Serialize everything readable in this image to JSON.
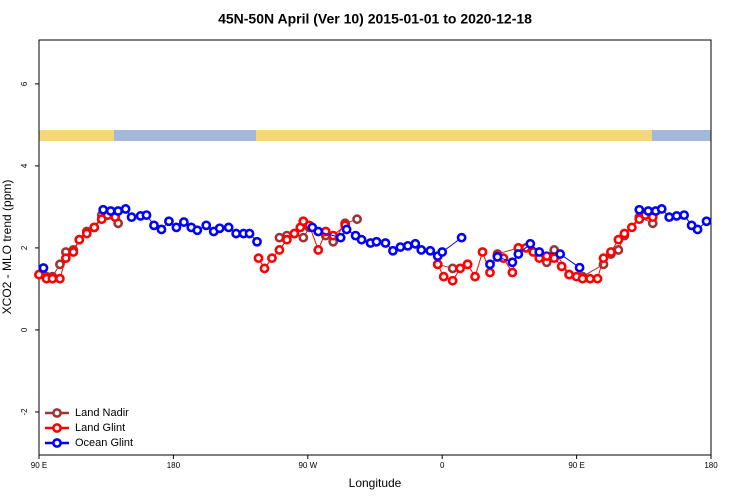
{
  "chart_data": {
    "type": "line",
    "title": "45N-50N April (Ver 10)   2015-01-01 to 2020-12-18",
    "xlabel": "Longitude",
    "ylabel": "XCO2 - MLO trend (ppm)",
    "xlim": [
      90,
      540
    ],
    "xticks": [
      {
        "value": 90,
        "label": "90 E"
      },
      180,
      {
        "value": 270,
        "label": "90 W"
      },
      {
        "value": 360,
        "label": "0"
      },
      {
        "value": 450,
        "label": "90 E"
      },
      {
        "value": 540,
        "label": "180"
      }
    ],
    "ylim": [
      -3.05,
      7.07
    ],
    "yticks": [
      -2,
      0,
      2,
      4,
      6
    ],
    "legend": "bottom-left",
    "series": [
      {
        "name": "Land Nadir",
        "color": "#a03434",
        "x": [
          90,
          95,
          99,
          104,
          108,
          113,
          117,
          122,
          127,
          132,
          136,
          143,
          251,
          256,
          261,
          267,
          271,
          282,
          287,
          295,
          303,
          357,
          367,
          377,
          397,
          411,
          430,
          435,
          445,
          454,
          468,
          473,
          478,
          482,
          492,
          501
        ],
        "values": [
          1.35,
          1.3,
          1.3,
          1.6,
          1.9,
          1.95,
          2.2,
          2.4,
          2.5,
          2.8,
          2.8,
          2.6,
          2.25,
          2.3,
          2.35,
          2.25,
          2.5,
          2.3,
          2.15,
          2.6,
          2.7,
          1.6,
          1.5,
          1.6,
          1.85,
          2.0,
          1.65,
          1.95,
          1.35,
          1.3,
          1.6,
          1.85,
          1.95,
          2.3,
          2.75,
          2.6
        ]
      },
      {
        "name": "Land Glint",
        "color": "#ff0000",
        "x": [
          90,
          95,
          99,
          104,
          108,
          113,
          117,
          122,
          127,
          132,
          136,
          141,
          237,
          241,
          246,
          251,
          256,
          261,
          265,
          267,
          271,
          277,
          282,
          287,
          295,
          357,
          361,
          367,
          372,
          377,
          382,
          387,
          392,
          397,
          401,
          407,
          411,
          416,
          421,
          425,
          430,
          435,
          440,
          445,
          450,
          454,
          459,
          464,
          468,
          473,
          478,
          482,
          487,
          492,
          496,
          501
        ],
        "values": [
          1.35,
          1.25,
          1.25,
          1.25,
          1.75,
          1.9,
          2.2,
          2.35,
          2.5,
          2.7,
          2.8,
          2.75,
          1.75,
          1.5,
          1.75,
          1.95,
          2.2,
          2.35,
          2.5,
          2.65,
          2.55,
          1.95,
          2.4,
          2.3,
          2.55,
          1.6,
          1.3,
          1.2,
          1.5,
          1.6,
          1.3,
          1.9,
          1.4,
          1.8,
          1.75,
          1.4,
          2.0,
          2.0,
          1.9,
          1.75,
          1.8,
          1.75,
          1.55,
          1.35,
          1.3,
          1.25,
          1.25,
          1.25,
          1.75,
          1.9,
          2.2,
          2.35,
          2.5,
          2.7,
          2.8,
          2.75
        ]
      },
      {
        "name": "Ocean Glint",
        "color": "#0000ff",
        "x": [
          93,
          133,
          138,
          143,
          148,
          152,
          158,
          162,
          167,
          172,
          177,
          182,
          187,
          192,
          196,
          202,
          207,
          211,
          217,
          222,
          227,
          231,
          236,
          273,
          277,
          292,
          296,
          302,
          306,
          312,
          316,
          322,
          327,
          332,
          337,
          342,
          346,
          352,
          357,
          360,
          373,
          392,
          397,
          407,
          411,
          419,
          425,
          439,
          452,
          492,
          498,
          503,
          507,
          512,
          517,
          522,
          527,
          531,
          537
        ],
        "values": [
          1.51,
          2.93,
          2.9,
          2.9,
          2.95,
          2.75,
          2.78,
          2.8,
          2.55,
          2.45,
          2.65,
          2.5,
          2.63,
          2.5,
          2.43,
          2.55,
          2.4,
          2.48,
          2.5,
          2.35,
          2.35,
          2.35,
          2.15,
          2.5,
          2.4,
          2.25,
          2.45,
          2.3,
          2.2,
          2.12,
          2.15,
          2.12,
          1.93,
          2.02,
          2.05,
          2.1,
          1.95,
          1.93,
          1.8,
          1.9,
          2.25,
          1.6,
          1.78,
          1.65,
          1.85,
          2.1,
          1.9,
          1.85,
          1.52,
          2.93,
          2.9,
          2.9,
          2.95,
          2.75,
          2.78,
          2.8,
          2.55,
          2.45,
          2.65
        ]
      }
    ]
  }
}
